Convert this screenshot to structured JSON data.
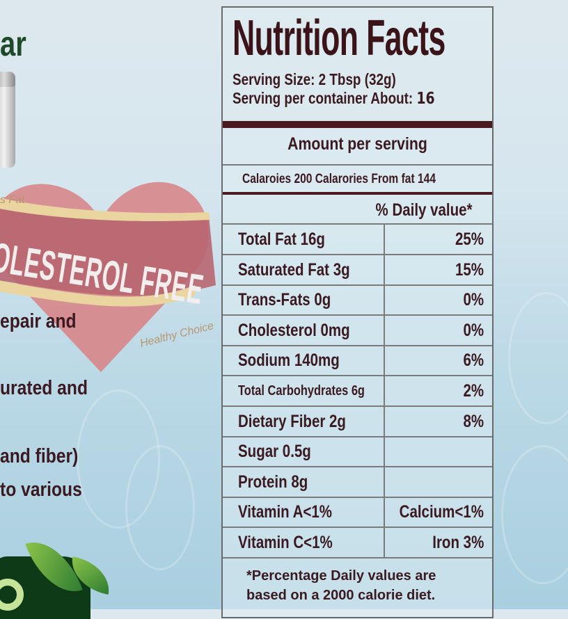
{
  "background": {
    "title_fragment": "ar",
    "badge_top": "s Fat",
    "badge_main": "OLESTEROL FREE",
    "badge_bottom": "Healthy Choice",
    "body_lines": [
      "epair and",
      "urated and",
      " and fiber)",
      "to various"
    ],
    "colors": {
      "title": "#1f4a2a",
      "heart": "#d7868a",
      "text": "#3a1a20"
    }
  },
  "label": {
    "title": "Nutrition Facts",
    "serving_size": "Serving Size: 2 Tbsp (32g)",
    "servings_prefix": "Serving per container About: ",
    "servings_value": "16",
    "amount_header": "Amount per serving",
    "calories": "Calaroies 200  Calarories From fat 144",
    "daily_value_header": "% Daily value*",
    "rows": [
      {
        "name": "Total Fat 16g",
        "value": "25%"
      },
      {
        "name": "Saturated Fat 3g",
        "value": "15%"
      },
      {
        "name": "Trans-Fats 0g",
        "value": "0%"
      },
      {
        "name": "Cholesterol 0mg",
        "value": "0%"
      },
      {
        "name": "Sodium 140mg",
        "value": "6%"
      },
      {
        "name": "Total Carbohydrates 6g",
        "value": "2%"
      },
      {
        "name": "Dietary Fiber 2g",
        "value": "8%"
      },
      {
        "name": "Sugar 0.5g",
        "value": ""
      },
      {
        "name": "Protein 8g",
        "value": ""
      },
      {
        "name": "Vitamin A<1%",
        "value": "Calcium<1%"
      },
      {
        "name": "Vitamin C<1%",
        "value": "Iron 3%"
      }
    ],
    "footnote_1": "*Percentage Daily values are",
    "footnote_2": "based on a 2000 calorie diet."
  }
}
